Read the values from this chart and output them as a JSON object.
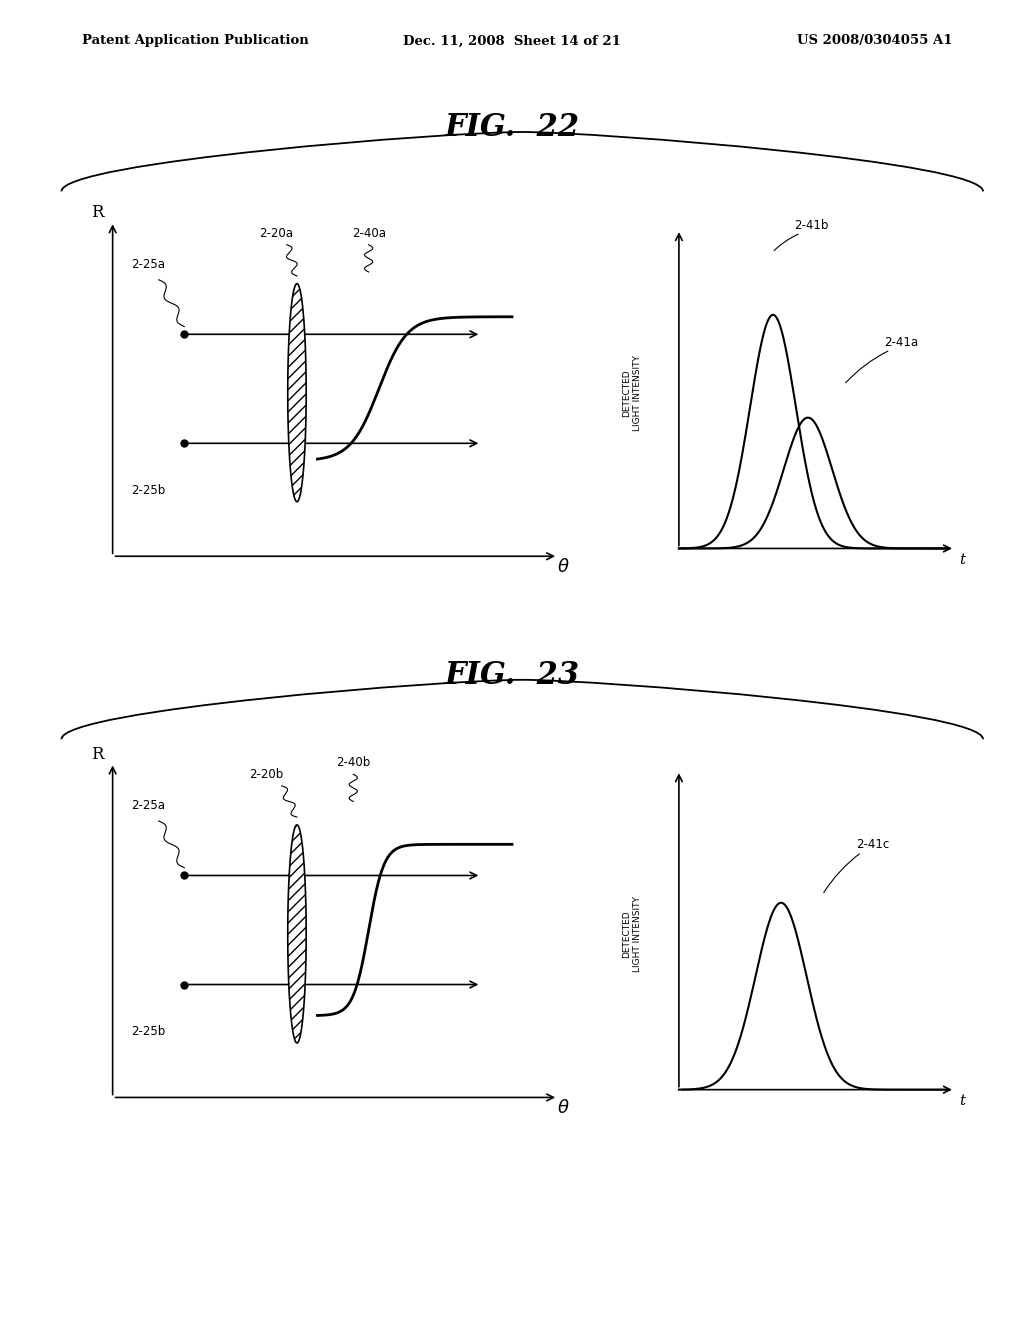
{
  "bg_color": "#ffffff",
  "header_left": "Patent Application Publication",
  "header_center": "Dec. 11, 2008  Sheet 14 of 21",
  "header_right": "US 2008/0304055 A1",
  "fig22_title": "FIG.  22",
  "fig23_title": "FIG.  23",
  "fig22_labels": {
    "lens": "2-20a",
    "beam_curve": "2-40a",
    "dot_top": "2-25a",
    "dot_bot": "2-25b",
    "peak_tall": "2-41b",
    "peak_short": "2-41a"
  },
  "fig23_labels": {
    "lens": "2-20b",
    "beam_curve": "2-40b",
    "dot_top": "2-25a",
    "dot_bot": "2-25b",
    "peak": "2-41c"
  }
}
